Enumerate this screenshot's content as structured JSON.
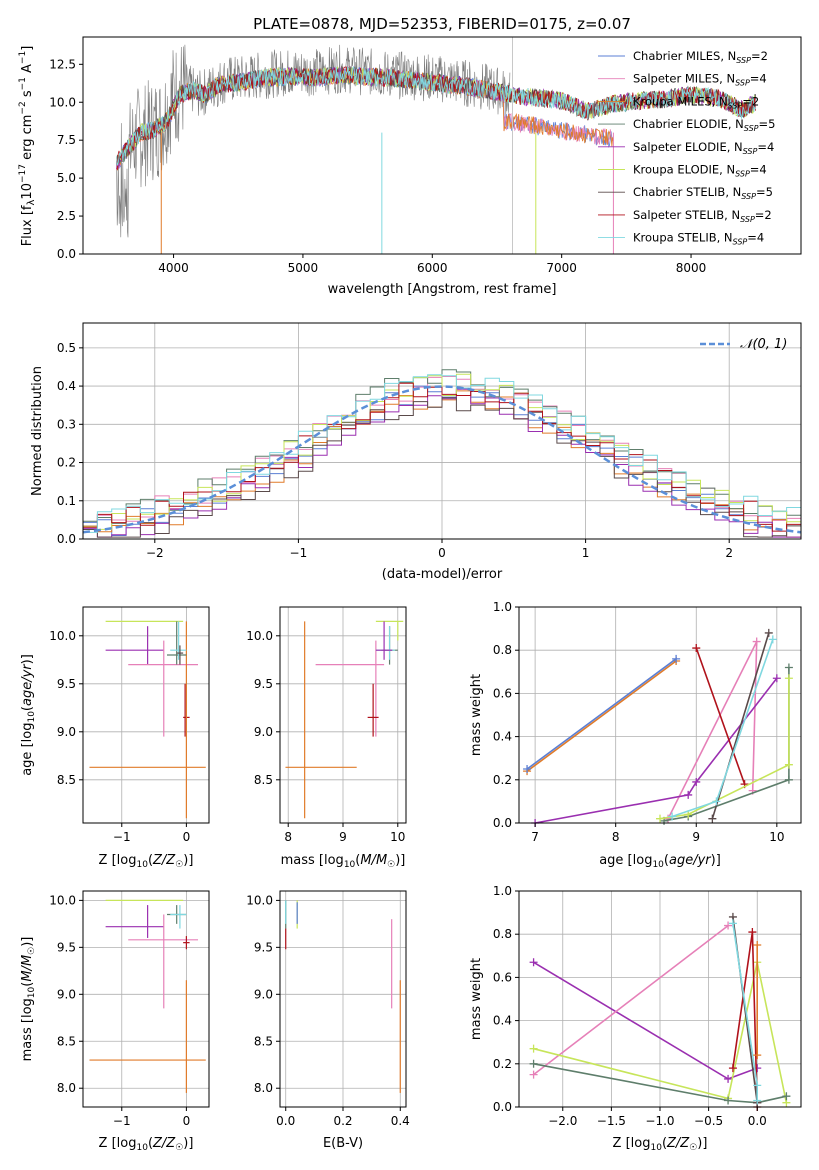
{
  "figure": {
    "title": "PLATE=0878, MJD=52353, FIBERID=0175, z=0.07"
  },
  "colors": {
    "chabrier_miles": "#5b7fd4",
    "salpeter_miles": "#e680b8",
    "kroupa_miles": "#e07b2a",
    "chabrier_elodie": "#5e7e6b",
    "salpeter_elodie": "#9a2fb0",
    "kroupa_elodie": "#c7e55a",
    "chabrier_stelib": "#5a4a4a",
    "salpeter_stelib": "#b0121b",
    "kroupa_stelib": "#80d8e0",
    "gauss": "#5b8fd8"
  },
  "chart_data": [
    {
      "id": "spectrum",
      "type": "line",
      "xlabel": "wavelength [Angstrom, rest frame]",
      "ylabel": "Flux [f_λ 10^-17 erg cm^-2 s^-1 A^-1]",
      "xlim": [
        3300,
        8850
      ],
      "ylim": [
        0,
        14.3
      ],
      "xticks": [
        "4000",
        "5000",
        "6000",
        "7000",
        "8000"
      ],
      "yticks": [
        "0.0",
        "2.5",
        "5.0",
        "7.5",
        "10.0",
        "12.5"
      ],
      "grid": false,
      "legend_position": "top-right",
      "legend": [
        {
          "name": "Chabrier MILES, N",
          "sub": "SSP",
          "eq": "=2",
          "color_key": "chabrier_miles"
        },
        {
          "name": "Salpeter MILES, N",
          "sub": "SSP",
          "eq": "=4",
          "color_key": "salpeter_miles"
        },
        {
          "name": "Kroupa MILES, N",
          "sub": "SSP",
          "eq": "=2",
          "color_key": "kroupa_miles"
        },
        {
          "name": "Chabrier ELODIE, N",
          "sub": "SSP",
          "eq": "=5",
          "color_key": "chabrier_elodie"
        },
        {
          "name": "Salpeter ELODIE, N",
          "sub": "SSP",
          "eq": "=4",
          "color_key": "salpeter_elodie"
        },
        {
          "name": "Kroupa ELODIE, N",
          "sub": "SSP",
          "eq": "=4",
          "color_key": "kroupa_elodie"
        },
        {
          "name": "Chabrier STELIB, N",
          "sub": "SSP",
          "eq": "=5",
          "color_key": "chabrier_stelib"
        },
        {
          "name": "Salpeter STELIB, N",
          "sub": "SSP",
          "eq": "=2",
          "color_key": "salpeter_stelib"
        },
        {
          "name": "Kroupa STELIB, N",
          "sub": "SSP",
          "eq": "=4",
          "color_key": "kroupa_stelib"
        }
      ],
      "data_flux_envelope": {
        "x": [
          3560,
          3600,
          3700,
          3800,
          3900,
          4000,
          4100,
          4200,
          4300,
          4400,
          4500,
          4700,
          4900,
          5100,
          5300,
          5500,
          5700,
          5900,
          6100,
          6300,
          6500,
          6600
        ],
        "y": [
          6.0,
          5.5,
          7.5,
          8.0,
          8.5,
          10.5,
          11.0,
          10.5,
          11.0,
          11.5,
          11.5,
          11.8,
          12.0,
          12.0,
          12.2,
          12.0,
          11.8,
          11.7,
          11.5,
          11.2,
          10.8,
          10.5
        ]
      },
      "model_continuum": {
        "x": [
          3560,
          3650,
          3750,
          3850,
          3950,
          4050,
          4150,
          4250,
          4350,
          4500,
          4700,
          4900,
          5100,
          5300,
          5500,
          5700,
          5900,
          6100,
          6300,
          6500,
          6600,
          6800,
          7000,
          7200,
          7400,
          7600,
          7800,
          8000,
          8200,
          8400,
          8500
        ],
        "y": [
          6.0,
          7.0,
          8.0,
          8.2,
          8.8,
          10.5,
          10.8,
          10.5,
          11.2,
          11.3,
          11.6,
          11.7,
          11.6,
          11.8,
          11.7,
          11.6,
          11.4,
          11.2,
          11.0,
          10.7,
          10.5,
          10.3,
          10.1,
          9.4,
          9.9,
          10.1,
          10.2,
          10.5,
          10.3,
          9.5,
          10.0
        ]
      },
      "miles_red_end": {
        "x": [
          6550,
          6700,
          6900,
          7100,
          7300,
          7400
        ],
        "y": [
          8.7,
          8.6,
          8.3,
          8.0,
          7.7,
          7.6
        ]
      },
      "drop_lines": [
        {
          "x": 3905,
          "color_key": "kroupa_miles"
        },
        {
          "x": 5610,
          "color_key": "kroupa_stelib"
        },
        {
          "x": 6800,
          "color_key": "kroupa_elodie"
        },
        {
          "x": 7400,
          "color_key": "salpeter_miles"
        }
      ]
    },
    {
      "id": "residual-histogram",
      "type": "histogram",
      "xlabel": "(data-model)/error",
      "ylabel": "Normed distribution",
      "xlim": [
        -2.5,
        2.5
      ],
      "ylim": [
        0,
        0.565
      ],
      "xticks": [
        "−2",
        "−1",
        "0",
        "1",
        "2"
      ],
      "yticks": [
        "0.0",
        "0.1",
        "0.2",
        "0.3",
        "0.4",
        "0.5"
      ],
      "grid": true,
      "legend_position": "top-right",
      "gauss_label": "𝒩(0, 1)",
      "bin_edges_start": -2.5,
      "bin_width": 0.1,
      "series_base": [
        0.02,
        0.025,
        0.035,
        0.045,
        0.055,
        0.065,
        0.075,
        0.085,
        0.1,
        0.11,
        0.13,
        0.15,
        0.17,
        0.19,
        0.21,
        0.23,
        0.26,
        0.28,
        0.3,
        0.32,
        0.34,
        0.36,
        0.37,
        0.38,
        0.39,
        0.39,
        0.39,
        0.38,
        0.37,
        0.36,
        0.35,
        0.33,
        0.31,
        0.29,
        0.27,
        0.25,
        0.23,
        0.21,
        0.19,
        0.17,
        0.15,
        0.13,
        0.115,
        0.1,
        0.085,
        0.07,
        0.06,
        0.05,
        0.04,
        0.03
      ],
      "series_offsets": [
        0.0,
        0.02,
        -0.015,
        0.03,
        -0.02,
        0.015,
        -0.025,
        0.01,
        0.025
      ]
    },
    {
      "id": "age-vs-z",
      "type": "errorbar",
      "xlabel": "Z [log₁₀(Z/Z☉)]",
      "ylabel": "age  [log₁₀(age/yr)]",
      "xlim": [
        -1.6,
        0.35
      ],
      "ylim": [
        8.05,
        10.3
      ],
      "xticks": [
        "−1",
        "0"
      ],
      "yticks": [
        "8.5",
        "9.0",
        "9.5",
        "10.0"
      ],
      "grid": true
    },
    {
      "id": "age-vs-mass",
      "type": "errorbar",
      "xlabel": "mass [log₁₀(M/M☉)]",
      "ylabel": "",
      "xlim": [
        7.85,
        10.15
      ],
      "ylim": [
        8.05,
        10.3
      ],
      "xticks": [
        "8",
        "9",
        "10"
      ],
      "yticks": [
        "8.5",
        "9.0",
        "9.5",
        "10.0"
      ],
      "grid": true
    },
    {
      "id": "massweight-vs-age",
      "type": "line",
      "xlabel": "age  [log₁₀(age/yr)]",
      "ylabel": "mass weight",
      "xlim": [
        6.8,
        10.3
      ],
      "ylim": [
        0,
        1
      ],
      "xticks": [
        "7",
        "8",
        "9",
        "10"
      ],
      "yticks": [
        "0.0",
        "0.2",
        "0.4",
        "0.6",
        "0.8",
        "1.0"
      ],
      "grid": true,
      "series": [
        {
          "color_key": "kroupa_miles",
          "x": [
            6.9,
            8.75
          ],
          "y": [
            0.24,
            0.75
          ]
        },
        {
          "color_key": "chabrier_miles",
          "x": [
            6.9,
            8.75
          ],
          "y": [
            0.25,
            0.76
          ]
        },
        {
          "color_key": "salpeter_miles",
          "x": [
            8.65,
            9.75,
            9.7
          ],
          "y": [
            0.02,
            0.84,
            0.15
          ]
        },
        {
          "color_key": "salpeter_elodie",
          "x": [
            7.0,
            8.9,
            9.0,
            10.0
          ],
          "y": [
            0.0,
            0.13,
            0.19,
            0.67
          ]
        },
        {
          "color_key": "salpeter_stelib",
          "x": [
            9.0,
            9.6
          ],
          "y": [
            0.81,
            0.18
          ]
        },
        {
          "color_key": "chabrier_elodie",
          "x": [
            8.6,
            8.9,
            10.15,
            10.15
          ],
          "y": [
            0.01,
            0.03,
            0.2,
            0.72
          ]
        },
        {
          "color_key": "kroupa_elodie",
          "x": [
            8.55,
            8.9,
            10.15,
            10.15
          ],
          "y": [
            0.02,
            0.04,
            0.27,
            0.67
          ]
        },
        {
          "color_key": "chabrier_stelib",
          "x": [
            9.2,
            9.9
          ],
          "y": [
            0.02,
            0.88
          ]
        },
        {
          "color_key": "kroupa_stelib",
          "x": [
            8.7,
            9.25,
            9.95
          ],
          "y": [
            0.03,
            0.1,
            0.85
          ]
        }
      ]
    },
    {
      "id": "mass-vs-z",
      "type": "errorbar",
      "xlabel": "Z [log₁₀(Z/Z☉)]",
      "ylabel": "mass [log₁₀(M/M☉)]",
      "xlim": [
        -1.6,
        0.35
      ],
      "ylim": [
        7.8,
        10.1
      ],
      "xticks": [
        "−1",
        "0"
      ],
      "yticks": [
        "8.0",
        "8.5",
        "9.0",
        "9.5",
        "10.0"
      ],
      "grid": true
    },
    {
      "id": "mass-vs-ebv",
      "type": "errorbar",
      "xlabel": "E(B-V)",
      "ylabel": "",
      "xlim": [
        -0.02,
        0.42
      ],
      "ylim": [
        7.8,
        10.1
      ],
      "xticks": [
        "0.0",
        "0.2",
        "0.4"
      ],
      "yticks": [
        "8.0",
        "8.5",
        "9.0",
        "9.5",
        "10.0"
      ],
      "grid": true
    },
    {
      "id": "massweight-vs-z",
      "type": "line",
      "xlabel": "Z [log₁₀(Z/Z☉)]",
      "ylabel": "mass weight",
      "xlim": [
        -2.45,
        0.45
      ],
      "ylim": [
        0,
        1
      ],
      "xticks": [
        "−2.0",
        "−1.5",
        "−1.0",
        "−0.5",
        "0.0"
      ],
      "yticks": [
        "0.0",
        "0.2",
        "0.4",
        "0.6",
        "0.8",
        "1.0"
      ],
      "grid": true,
      "series": [
        {
          "color_key": "salpeter_elodie",
          "x": [
            -2.3,
            -0.3,
            0.0
          ],
          "y": [
            0.67,
            0.13,
            0.18
          ]
        },
        {
          "color_key": "salpeter_miles",
          "x": [
            -2.3,
            -0.3
          ],
          "y": [
            0.15,
            0.84
          ]
        },
        {
          "color_key": "kroupa_elodie",
          "x": [
            -2.3,
            -0.3,
            0.0,
            0.3
          ],
          "y": [
            0.27,
            0.04,
            0.67,
            0.02
          ]
        },
        {
          "color_key": "chabrier_elodie",
          "x": [
            -2.3,
            -0.3,
            0.0,
            0.3
          ],
          "y": [
            0.2,
            0.03,
            0.02,
            0.05
          ]
        },
        {
          "color_key": "salpeter_stelib",
          "x": [
            -0.25,
            -0.05,
            0.0
          ],
          "y": [
            0.18,
            0.81,
            0.0
          ]
        },
        {
          "color_key": "chabrier_stelib",
          "x": [
            -0.25,
            0.0,
            0.0
          ],
          "y": [
            0.88,
            0.02,
            0.02
          ]
        },
        {
          "color_key": "kroupa_stelib",
          "x": [
            -0.25,
            0.0,
            0.0
          ],
          "y": [
            0.85,
            0.1,
            0.03
          ]
        },
        {
          "color_key": "kroupa_miles",
          "x": [
            0.0,
            0.0
          ],
          "y": [
            0.24,
            0.75
          ]
        }
      ]
    }
  ],
  "errorbars": {
    "age_vs_z": [
      {
        "color_key": "kroupa_elodie",
        "x": -0.6,
        "xlo": -1.25,
        "xhi": -0.05,
        "y": 10.15,
        "ylo": 10.15,
        "yhi": 10.15
      },
      {
        "color_key": "salpeter_elodie",
        "x": -0.6,
        "xlo": -1.25,
        "xhi": -0.35,
        "y": 9.85,
        "ylo": 9.7,
        "yhi": 10.1
      },
      {
        "color_key": "salpeter_miles",
        "x": -0.35,
        "xlo": -0.9,
        "xhi": 0.18,
        "y": 9.7,
        "ylo": 8.95,
        "yhi": 9.95
      },
      {
        "color_key": "salpeter_stelib",
        "x": -0.02,
        "xlo": -0.05,
        "xhi": 0.05,
        "y": 9.15,
        "ylo": 8.95,
        "yhi": 9.5
      },
      {
        "color_key": "kroupa_miles",
        "x": 0.0,
        "xlo": -1.5,
        "xhi": 0.3,
        "y": 8.63,
        "ylo": 8.1,
        "yhi": 10.15
      },
      {
        "color_key": "chabrier_elodie",
        "x": -0.15,
        "xlo": -0.3,
        "xhi": 0.0,
        "y": 9.8,
        "ylo": 9.7,
        "yhi": 10.15
      },
      {
        "color_key": "kroupa_stelib",
        "x": -0.12,
        "xlo": -0.25,
        "xhi": 0.0,
        "y": 9.85,
        "ylo": 9.75,
        "yhi": 10.15
      },
      {
        "color_key": "chabrier_stelib",
        "x": -0.1,
        "xlo": -0.15,
        "xhi": -0.05,
        "y": 9.82,
        "ylo": 9.7,
        "yhi": 9.9
      }
    ],
    "age_vs_mass": [
      {
        "color_key": "kroupa_elodie",
        "x": 10.0,
        "xlo": 9.6,
        "xhi": 10.1,
        "y": 10.15,
        "ylo": 9.95,
        "yhi": 10.15
      },
      {
        "color_key": "salpeter_miles",
        "x": 9.6,
        "xlo": 8.5,
        "xhi": 9.75,
        "y": 9.7,
        "ylo": 8.95,
        "yhi": 9.95
      },
      {
        "color_key": "salpeter_stelib",
        "x": 9.55,
        "xlo": 9.45,
        "xhi": 9.65,
        "y": 9.15,
        "ylo": 8.95,
        "yhi": 9.5
      },
      {
        "color_key": "kroupa_miles",
        "x": 8.3,
        "xlo": 7.95,
        "xhi": 9.25,
        "y": 8.63,
        "ylo": 8.1,
        "yhi": 10.15
      },
      {
        "color_key": "chabrier_elodie",
        "x": 9.85,
        "xlo": 9.7,
        "xhi": 10.0,
        "y": 9.85,
        "ylo": 9.7,
        "yhi": 10.1
      },
      {
        "color_key": "kroupa_stelib",
        "x": 9.85,
        "xlo": 9.6,
        "xhi": 9.95,
        "y": 9.85,
        "ylo": 9.75,
        "yhi": 10.1
      },
      {
        "color_key": "salpeter_elodie",
        "x": 9.75,
        "xlo": 9.6,
        "xhi": 9.9,
        "y": 9.85,
        "ylo": 9.75,
        "yhi": 10.15
      }
    ],
    "mass_vs_z": [
      {
        "color_key": "kroupa_elodie",
        "x": -0.6,
        "xlo": -1.25,
        "xhi": -0.05,
        "y": 10.0,
        "ylo": 10.0,
        "yhi": 10.0
      },
      {
        "color_key": "salpeter_elodie",
        "x": -0.6,
        "xlo": -1.25,
        "xhi": -0.35,
        "y": 9.72,
        "ylo": 9.6,
        "yhi": 9.95
      },
      {
        "color_key": "salpeter_miles",
        "x": -0.35,
        "xlo": -0.9,
        "xhi": 0.18,
        "y": 9.58,
        "ylo": 8.85,
        "yhi": 9.85
      },
      {
        "color_key": "salpeter_stelib",
        "x": 0.0,
        "xlo": -0.05,
        "xhi": 0.05,
        "y": 9.55,
        "ylo": 9.48,
        "yhi": 9.62
      },
      {
        "color_key": "kroupa_miles",
        "x": 0.0,
        "xlo": -1.5,
        "xhi": 0.3,
        "y": 8.3,
        "ylo": 7.95,
        "yhi": 9.15
      },
      {
        "color_key": "chabrier_elodie",
        "x": -0.15,
        "xlo": -0.3,
        "xhi": 0.0,
        "y": 9.85,
        "ylo": 9.75,
        "yhi": 9.95
      },
      {
        "color_key": "kroupa_stelib",
        "x": -0.1,
        "xlo": -0.25,
        "xhi": 0.0,
        "y": 9.85,
        "ylo": 9.7,
        "yhi": 9.95
      }
    ],
    "mass_vs_ebv": [
      {
        "color_key": "chabrier_elodie",
        "x": 0.0,
        "xlo": 0.0,
        "xhi": 0.0,
        "y": 9.85,
        "ylo": 9.7,
        "yhi": 10.0
      },
      {
        "color_key": "salpeter_stelib",
        "x": 0.0,
        "xlo": 0.0,
        "xhi": 0.0,
        "y": 9.6,
        "ylo": 9.48,
        "yhi": 9.7
      },
      {
        "color_key": "kroupa_stelib",
        "x": 0.0,
        "xlo": 0.0,
        "xhi": 0.0,
        "y": 9.9,
        "ylo": 9.75,
        "yhi": 10.0
      },
      {
        "color_key": "kroupa_elodie",
        "x": 0.04,
        "xlo": 0.04,
        "xhi": 0.04,
        "y": 9.95,
        "ylo": 9.7,
        "yhi": 10.0
      },
      {
        "color_key": "chabrier_miles",
        "x": 0.04,
        "xlo": 0.04,
        "xhi": 0.04,
        "y": 9.85,
        "ylo": 9.75,
        "yhi": 9.98
      },
      {
        "color_key": "salpeter_miles",
        "x": 0.37,
        "xlo": 0.37,
        "xhi": 0.37,
        "y": 9.3,
        "ylo": 8.85,
        "yhi": 9.8
      },
      {
        "color_key": "kroupa_miles",
        "x": 0.4,
        "xlo": 0.4,
        "xhi": 0.4,
        "y": 8.5,
        "ylo": 7.95,
        "yhi": 9.15
      }
    ]
  }
}
